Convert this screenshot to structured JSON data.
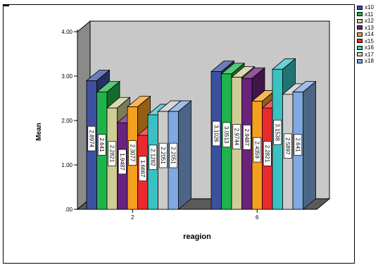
{
  "chart_data": {
    "type": "bar",
    "xlabel": "reagion",
    "ylabel": "Mean",
    "categories": [
      "2",
      "6"
    ],
    "ylim": [
      0,
      4
    ],
    "yticks": [
      ".00",
      "1.00",
      "2.00",
      "3.00",
      "4.00"
    ],
    "series": [
      {
        "name": "x10",
        "color": "#3c50a0",
        "values": [
          2.8974,
          3.1026
        ],
        "labels": [
          "2.8974",
          "3.1026"
        ]
      },
      {
        "name": "x11",
        "color": "#1fb44b",
        "values": [
          2.641,
          3.0513
        ],
        "labels": [
          "2.641",
          "3.0513"
        ]
      },
      {
        "name": "x12",
        "color": "#cfcc96",
        "values": [
          2.2821,
          2.9744
        ],
        "labels": [
          "2.2821",
          "2.9744"
        ]
      },
      {
        "name": "x13",
        "color": "#6a237c",
        "values": [
          1.9487,
          2.9487
        ],
        "labels": [
          "1.9487",
          "2.9487"
        ]
      },
      {
        "name": "x14",
        "color": "#f59f1e",
        "values": [
          2.3077,
          2.4359
        ],
        "labels": [
          "2.3077",
          "2.4359"
        ]
      },
      {
        "name": "x15",
        "color": "#ec2a2e",
        "values": [
          1.6667,
          2.2821
        ],
        "labels": [
          "1.6667",
          "2.2821"
        ]
      },
      {
        "name": "x16",
        "color": "#39c2c1",
        "values": [
          2.1282,
          3.1538
        ],
        "labels": [
          "2.1282",
          "3.1538"
        ]
      },
      {
        "name": "x17",
        "color": "#cbcbcb",
        "values": [
          2.2051,
          2.5897
        ],
        "labels": [
          "2.2051",
          "2.5897"
        ]
      },
      {
        "name": "x18",
        "color": "#7fa9e0",
        "values": [
          2.2051,
          2.641
        ],
        "labels": [
          "2.2051",
          "2.641"
        ]
      }
    ],
    "grid": false,
    "legend_position": "right",
    "wall_color": "#c8c8c8"
  }
}
